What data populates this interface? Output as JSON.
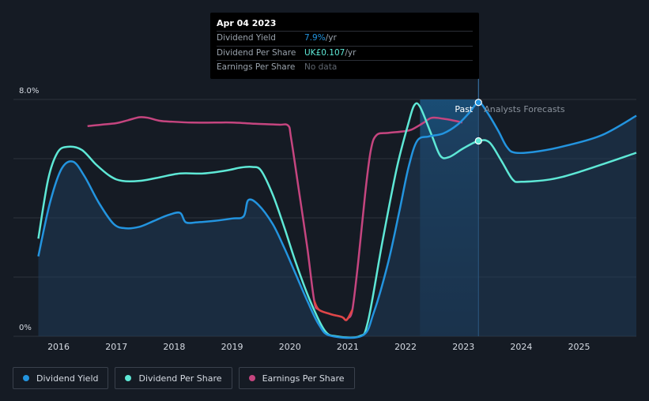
{
  "colors": {
    "background": "#151b24",
    "dividend_yield": "#2394df",
    "dividend_per_share": "#5ee8d6",
    "earnings_per_share": "#c5457f",
    "earnings_negative": "#e04646",
    "grid": "#2d333c"
  },
  "tooltip": {
    "date": "Apr 04 2023",
    "rows": [
      {
        "name": "Dividend Yield",
        "value": "7.9%",
        "unit": " /yr"
      },
      {
        "name": "Dividend Per Share",
        "value": "UK£0.107",
        "unit": " /yr"
      },
      {
        "name": "Earnings Per Share",
        "value": "No data",
        "unit": ""
      }
    ]
  },
  "legend": [
    {
      "label": "Dividend Yield",
      "color": "#2394df"
    },
    {
      "label": "Dividend Per Share",
      "color": "#5ee8d6"
    },
    {
      "label": "Earnings Per Share",
      "color": "#c5457f"
    }
  ],
  "chart_data": {
    "type": "line",
    "title": "",
    "xlabel": "",
    "ylabel": "",
    "x_ticks": [
      "2016",
      "2017",
      "2018",
      "2019",
      "2020",
      "2021",
      "2022",
      "2023",
      "2024",
      "2025"
    ],
    "y_ticks": [
      "0%",
      "8.0%"
    ],
    "xlim": [
      2015.63,
      2025.99
    ],
    "ylim": [
      0,
      8.0
    ],
    "grid": true,
    "past_label": "Past",
    "forecast_label": "Analysts Forecasts",
    "forecast_start": 2023.26,
    "highlight_start": 2022.25,
    "series": [
      {
        "name": "Dividend Yield",
        "axis": "percent",
        "points": [
          [
            2015.65,
            2.7
          ],
          [
            2015.85,
            4.5
          ],
          [
            2016.05,
            5.65
          ],
          [
            2016.25,
            5.9
          ],
          [
            2016.45,
            5.4
          ],
          [
            2016.7,
            4.5
          ],
          [
            2016.95,
            3.8
          ],
          [
            2017.15,
            3.65
          ],
          [
            2017.4,
            3.7
          ],
          [
            2017.65,
            3.9
          ],
          [
            2017.9,
            4.1
          ],
          [
            2018.1,
            4.17
          ],
          [
            2018.2,
            3.85
          ],
          [
            2018.4,
            3.85
          ],
          [
            2018.7,
            3.9
          ],
          [
            2019.0,
            3.98
          ],
          [
            2019.2,
            4.05
          ],
          [
            2019.28,
            4.6
          ],
          [
            2019.45,
            4.45
          ],
          [
            2019.7,
            3.8
          ],
          [
            2019.9,
            3.0
          ],
          [
            2020.1,
            2.1
          ],
          [
            2020.3,
            1.2
          ],
          [
            2020.5,
            0.4
          ],
          [
            2020.7,
            0.02
          ],
          [
            2021.25,
            0.02
          ],
          [
            2021.45,
            0.8
          ],
          [
            2021.7,
            2.5
          ],
          [
            2021.9,
            4.3
          ],
          [
            2022.05,
            5.7
          ],
          [
            2022.2,
            6.6
          ],
          [
            2022.4,
            6.75
          ],
          [
            2022.65,
            6.85
          ],
          [
            2022.9,
            7.15
          ],
          [
            2023.1,
            7.55
          ],
          [
            2023.26,
            7.9
          ],
          [
            2023.4,
            7.6
          ],
          [
            2023.6,
            6.95
          ],
          [
            2023.75,
            6.4
          ],
          [
            2023.9,
            6.2
          ],
          [
            2024.3,
            6.25
          ],
          [
            2024.8,
            6.45
          ],
          [
            2025.4,
            6.8
          ],
          [
            2025.99,
            7.45
          ]
        ]
      },
      {
        "name": "Dividend Per Share",
        "axis": "percent",
        "points": [
          [
            2015.65,
            3.3
          ],
          [
            2015.82,
            5.3
          ],
          [
            2015.98,
            6.2
          ],
          [
            2016.15,
            6.4
          ],
          [
            2016.4,
            6.3
          ],
          [
            2016.65,
            5.8
          ],
          [
            2016.9,
            5.4
          ],
          [
            2017.1,
            5.25
          ],
          [
            2017.4,
            5.25
          ],
          [
            2017.7,
            5.35
          ],
          [
            2018.1,
            5.5
          ],
          [
            2018.5,
            5.5
          ],
          [
            2018.9,
            5.6
          ],
          [
            2019.15,
            5.7
          ],
          [
            2019.35,
            5.72
          ],
          [
            2019.5,
            5.6
          ],
          [
            2019.7,
            4.8
          ],
          [
            2019.9,
            3.7
          ],
          [
            2020.1,
            2.5
          ],
          [
            2020.35,
            1.2
          ],
          [
            2020.6,
            0.2
          ],
          [
            2020.8,
            0.0
          ],
          [
            2021.2,
            0.0
          ],
          [
            2021.35,
            0.5
          ],
          [
            2021.6,
            3.2
          ],
          [
            2021.85,
            5.7
          ],
          [
            2022.05,
            7.2
          ],
          [
            2022.15,
            7.8
          ],
          [
            2022.25,
            7.75
          ],
          [
            2022.45,
            6.8
          ],
          [
            2022.6,
            6.1
          ],
          [
            2022.75,
            6.05
          ],
          [
            2023.0,
            6.35
          ],
          [
            2023.26,
            6.6
          ],
          [
            2023.45,
            6.55
          ],
          [
            2023.65,
            5.95
          ],
          [
            2023.85,
            5.3
          ],
          [
            2024.0,
            5.22
          ],
          [
            2024.5,
            5.3
          ],
          [
            2025.0,
            5.55
          ],
          [
            2025.99,
            6.2
          ]
        ]
      },
      {
        "name": "Earnings Per Share",
        "axis": "eps",
        "points": [
          [
            2016.5,
            7.1
          ],
          [
            2016.75,
            7.15
          ],
          [
            2017.0,
            7.2
          ],
          [
            2017.2,
            7.3
          ],
          [
            2017.4,
            7.4
          ],
          [
            2017.55,
            7.38
          ],
          [
            2017.75,
            7.28
          ],
          [
            2017.95,
            7.25
          ],
          [
            2018.3,
            7.22
          ],
          [
            2018.7,
            7.22
          ],
          [
            2019.0,
            7.22
          ],
          [
            2019.4,
            7.18
          ],
          [
            2019.8,
            7.15
          ],
          [
            2019.97,
            7.12
          ],
          [
            2020.02,
            6.7
          ],
          [
            2020.15,
            5.0
          ],
          [
            2020.3,
            3.0
          ],
          [
            2020.42,
            1.2
          ],
          [
            2020.5,
            0.9
          ],
          [
            2020.7,
            0.75
          ],
          [
            2020.9,
            0.65
          ],
          [
            2020.96,
            0.55
          ],
          [
            2021.0,
            0.6
          ],
          [
            2021.08,
            0.9
          ],
          [
            2021.18,
            2.5
          ],
          [
            2021.3,
            4.8
          ],
          [
            2021.4,
            6.3
          ],
          [
            2021.5,
            6.8
          ],
          [
            2021.7,
            6.87
          ],
          [
            2021.95,
            6.92
          ],
          [
            2022.1,
            6.98
          ],
          [
            2022.3,
            7.2
          ],
          [
            2022.45,
            7.38
          ],
          [
            2022.65,
            7.35
          ],
          [
            2022.85,
            7.28
          ],
          [
            2022.98,
            7.22
          ]
        ]
      }
    ],
    "markers": [
      {
        "series": "Dividend Yield",
        "x": 2023.26,
        "y": 7.9
      },
      {
        "series": "Dividend Per Share",
        "x": 2023.26,
        "y": 6.6
      }
    ]
  }
}
